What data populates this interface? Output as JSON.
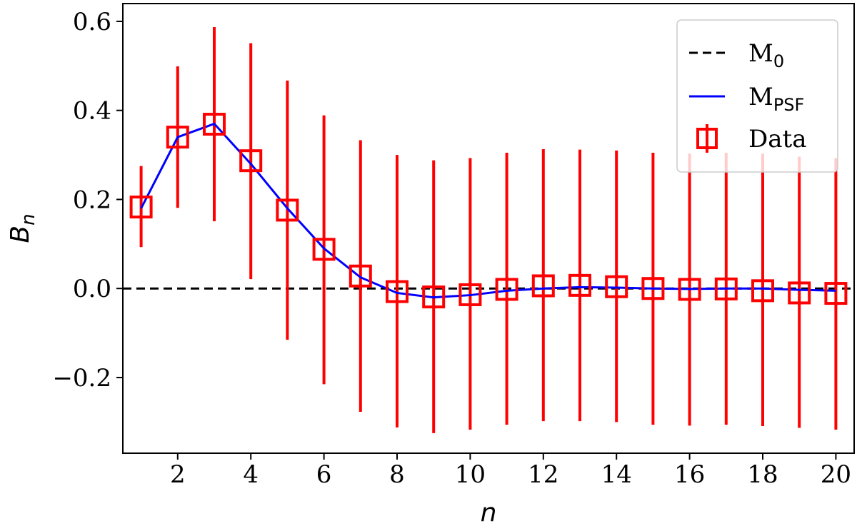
{
  "chart_data": {
    "type": "scatter",
    "xlabel": "n",
    "ylabel": "B",
    "ylabel_sub": "n",
    "xlim": [
      0.5,
      20.5
    ],
    "ylim": [
      -0.37,
      0.64
    ],
    "x_ticks": [
      2,
      4,
      6,
      8,
      10,
      12,
      14,
      16,
      18,
      20
    ],
    "x_tick_labels": [
      "2",
      "4",
      "6",
      "8",
      "10",
      "12",
      "14",
      "16",
      "18",
      "20"
    ],
    "y_ticks": [
      -0.2,
      0.0,
      0.2,
      0.4,
      0.6
    ],
    "y_tick_labels": [
      "−0.2",
      "0.0",
      "0.2",
      "0.4",
      "0.6"
    ],
    "grid": false,
    "legend_position": "top-right",
    "series": [
      {
        "name": "M",
        "name_sub": "0",
        "kind": "line",
        "style": "dashed",
        "color": "#000000",
        "x": [
          0.5,
          20.5
        ],
        "y": [
          0.0,
          0.0
        ]
      },
      {
        "name": "M",
        "name_sub": "PSF",
        "kind": "line",
        "style": "solid",
        "color": "#0000ff",
        "x": [
          1,
          2,
          3,
          4,
          5,
          6,
          7,
          8,
          9,
          10,
          11,
          12,
          13,
          14,
          15,
          16,
          17,
          18,
          19,
          20
        ],
        "y": [
          0.18,
          0.34,
          0.37,
          0.28,
          0.18,
          0.09,
          0.025,
          -0.01,
          -0.02,
          -0.015,
          -0.005,
          0.0,
          0.003,
          0.002,
          0.0,
          -0.001,
          0.0,
          0.0,
          -0.003,
          -0.005
        ]
      },
      {
        "name": "Data",
        "kind": "errorbar",
        "marker": "square",
        "color": "#ff0000",
        "x": [
          1,
          2,
          3,
          4,
          5,
          6,
          7,
          8,
          9,
          10,
          11,
          12,
          13,
          14,
          15,
          16,
          17,
          18,
          19,
          20
        ],
        "y": [
          0.183,
          0.34,
          0.369,
          0.287,
          0.176,
          0.088,
          0.028,
          -0.007,
          -0.019,
          -0.014,
          -0.002,
          0.006,
          0.007,
          0.004,
          0.0,
          -0.002,
          -0.001,
          -0.005,
          -0.01,
          -0.011
        ],
        "yerr_low": [
          0.093,
          0.181,
          0.151,
          0.021,
          -0.115,
          -0.215,
          -0.277,
          -0.312,
          -0.325,
          -0.317,
          -0.306,
          -0.298,
          -0.298,
          -0.3,
          -0.306,
          -0.308,
          -0.306,
          -0.309,
          -0.313,
          -0.317
        ],
        "yerr_high": [
          0.275,
          0.499,
          0.587,
          0.551,
          0.467,
          0.389,
          0.333,
          0.3,
          0.288,
          0.293,
          0.305,
          0.313,
          0.312,
          0.31,
          0.305,
          0.303,
          0.305,
          0.303,
          0.296,
          0.293
        ]
      }
    ]
  }
}
